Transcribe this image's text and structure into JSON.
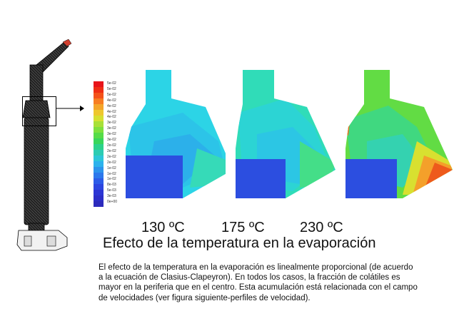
{
  "colorbar": {
    "labels": [
      "5e-02",
      "5e-02",
      "5e-02",
      "4e-02",
      "4e-02",
      "4e-02",
      "4e-02",
      "3e-02",
      "3e-02",
      "3e-02",
      "3e-02",
      "2e-02",
      "2e-02",
      "2e-02",
      "2e-02",
      "1e-02",
      "1e-02",
      "1e-02",
      "8e-03",
      "5e-03",
      "3e-03",
      "0e+00"
    ],
    "colors": [
      "#e8141a",
      "#ef2e14",
      "#f4521a",
      "#f77d22",
      "#f4a52a",
      "#eec72e",
      "#d6e032",
      "#a8e038",
      "#7ee03e",
      "#56dc48",
      "#38d65a",
      "#2cd28a",
      "#2cccb2",
      "#2cc6d8",
      "#2cb2ec",
      "#2c94ec",
      "#2c78ec",
      "#2c5ce8",
      "#2c46e0",
      "#2c36d4",
      "#2c2ec8",
      "#2c2abc"
    ]
  },
  "temperatures": [
    {
      "label": "130 ºC"
    },
    {
      "label": "175 ºC"
    },
    {
      "label": "230 ºC"
    }
  ],
  "title": "Efecto de la temperatura en la evaporación",
  "paragraph": "El efecto de la temperatura en la evaporación es linealmente proporcional (de acuerdo a la ecuación de Clasius-Clapeyron). En todos los casos, la fracción de colátiles es mayor en la periferia que en el centro. Esta acumulación está relacionada con el campo de velocidades (ver figura siguiente-perfiles de velocidad)."
}
